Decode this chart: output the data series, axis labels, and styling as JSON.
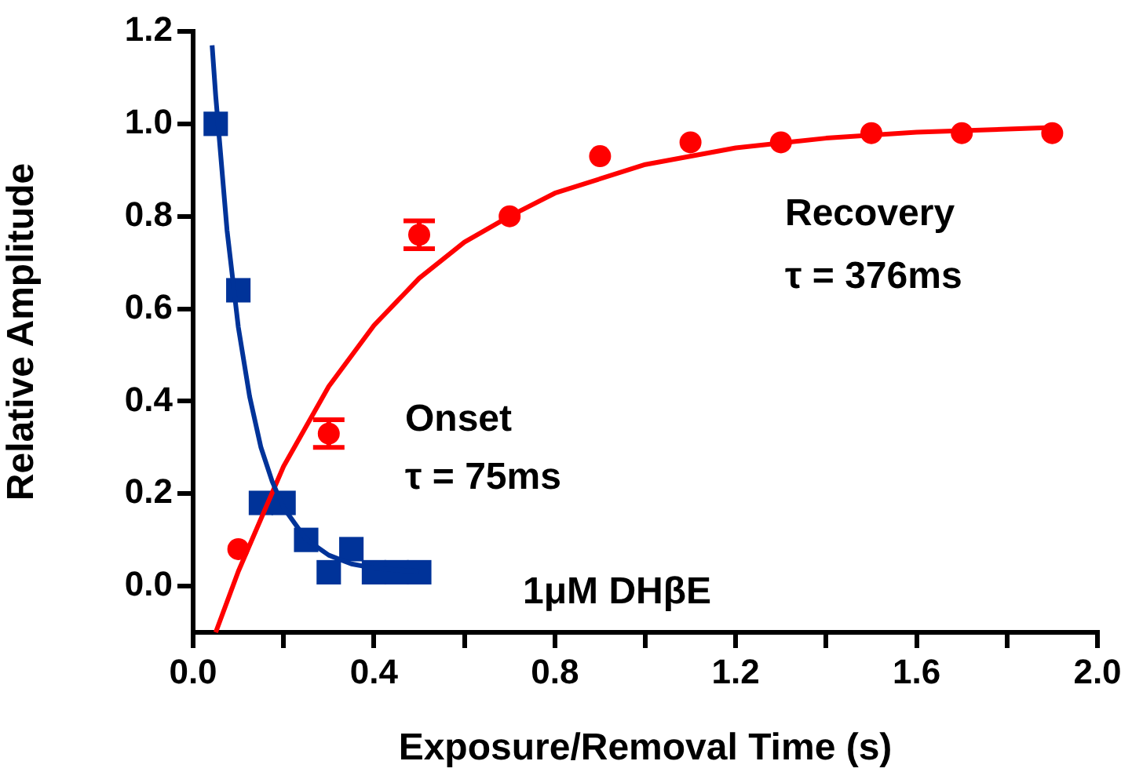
{
  "chart_data": {
    "type": "scatter",
    "xlabel": "Exposure/Removal Time (s)",
    "ylabel": "Relative Amplitude",
    "xlim": [
      0,
      2.0
    ],
    "xticks": [
      {
        "value": 0,
        "label": "0.0"
      },
      {
        "value": 0.2,
        "label": null
      },
      {
        "value": 0.4,
        "label": "0.4"
      },
      {
        "value": 0.6,
        "label": null
      },
      {
        "value": 0.8,
        "label": "0.8"
      },
      {
        "value": 1.0,
        "label": null
      },
      {
        "value": 1.2,
        "label": "1.2"
      },
      {
        "value": 1.4,
        "label": null
      },
      {
        "value": 1.6,
        "label": "1.6"
      },
      {
        "value": 1.8,
        "label": null
      },
      {
        "value": 2.0,
        "label": "2.0"
      }
    ],
    "ylim": [
      -0.1,
      1.2
    ],
    "yticks": [
      {
        "value": 0,
        "label": "0.0"
      },
      {
        "value": 0.2,
        "label": "0.2"
      },
      {
        "value": 0.4,
        "label": "0.4"
      },
      {
        "value": 0.6,
        "label": "0.6"
      },
      {
        "value": 0.8,
        "label": "0.8"
      },
      {
        "value": 1.0,
        "label": "1.0"
      },
      {
        "value": 1.2,
        "label": "1.2"
      }
    ],
    "grid": false,
    "legend": false,
    "annotations": [
      "Onset",
      "τ = 75ms",
      "Recovery",
      "τ = 376ms",
      "1μM DHβE"
    ],
    "series": [
      {
        "type": "line",
        "color": "#003399",
        "marker": "none",
        "x": [
          0.042,
          0.05,
          0.075,
          0.1,
          0.125,
          0.15,
          0.175,
          0.2,
          0.25,
          0.3,
          0.35,
          0.4,
          0.45,
          0.5
        ],
        "values": [
          1.17,
          1.06,
          0.77,
          0.56,
          0.41,
          0.3,
          0.226,
          0.17,
          0.101,
          0.067,
          0.048,
          0.039,
          0.035,
          0.032
        ]
      },
      {
        "type": "line",
        "color": "#ff0000",
        "marker": "none",
        "x": [
          0.05,
          0.1,
          0.2,
          0.3,
          0.4,
          0.5,
          0.6,
          0.7,
          0.8,
          1.0,
          1.2,
          1.4,
          1.6,
          1.9
        ],
        "values": [
          -0.1,
          0.032,
          0.259,
          0.432,
          0.564,
          0.666,
          0.744,
          0.8,
          0.85,
          0.912,
          0.948,
          0.969,
          0.982,
          0.992
        ]
      },
      {
        "color": "#003399",
        "marker": "square",
        "x": [
          0.05,
          0.1,
          0.15,
          0.2,
          0.25,
          0.3,
          0.35,
          0.4,
          0.45,
          0.5
        ],
        "values": [
          1.0,
          0.64,
          0.18,
          0.18,
          0.1,
          0.03,
          0.08,
          0.03,
          0.03,
          0.03
        ]
      },
      {
        "color": "#ff0000",
        "marker": "circle",
        "x": [
          0.1,
          0.3,
          0.5,
          0.7,
          0.9,
          1.1,
          1.3,
          1.5,
          1.7,
          1.9
        ],
        "values": [
          0.08,
          0.33,
          0.76,
          0.8,
          0.93,
          0.96,
          0.96,
          0.98,
          0.98,
          0.98
        ],
        "errors": [
          null,
          0.03,
          0.03,
          null,
          null,
          null,
          null,
          null,
          null,
          null
        ]
      }
    ]
  }
}
